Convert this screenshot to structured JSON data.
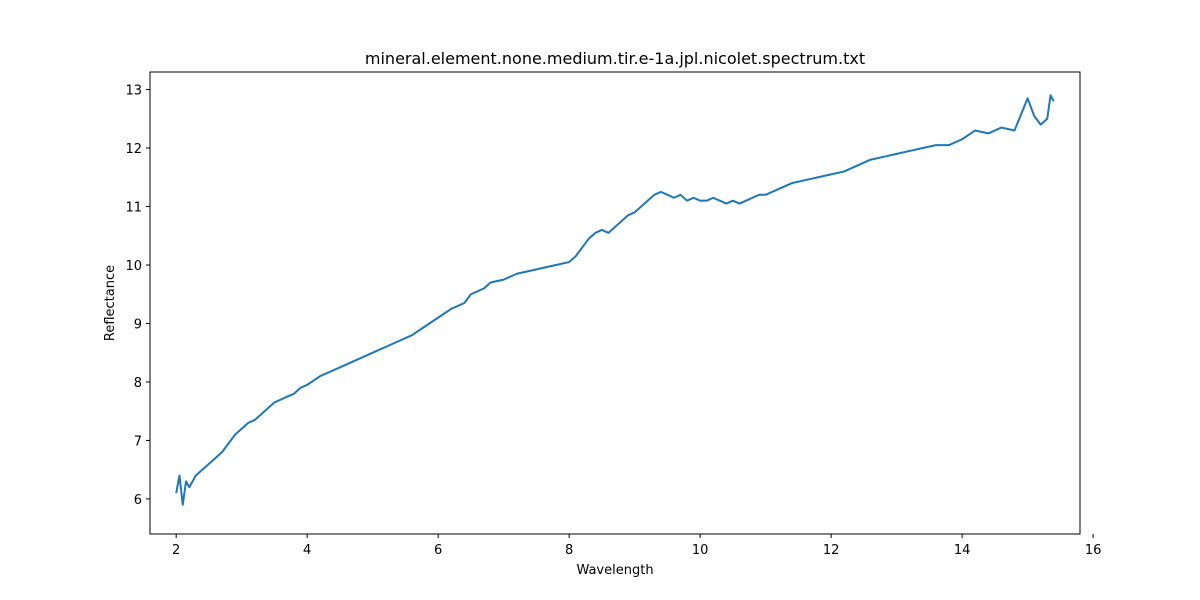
{
  "chart_data": {
    "type": "line",
    "title": "mineral.element.none.medium.tir.e-1a.jpl.nicolet.spectrum.txt",
    "xlabel": "Wavelength",
    "ylabel": "Reflectance",
    "xlim": [
      1.6,
      15.8
    ],
    "ylim": [
      5.4,
      13.3
    ],
    "xticks": [
      2,
      4,
      6,
      8,
      10,
      12,
      14,
      16
    ],
    "yticks": [
      6,
      7,
      8,
      9,
      10,
      11,
      12,
      13
    ],
    "grid": false,
    "series": [
      {
        "color": "#1f77b4",
        "x": [
          2.0,
          2.05,
          2.1,
          2.15,
          2.2,
          2.3,
          2.4,
          2.5,
          2.6,
          2.7,
          2.8,
          2.9,
          3.0,
          3.1,
          3.2,
          3.3,
          3.4,
          3.5,
          3.6,
          3.7,
          3.8,
          3.9,
          4.0,
          4.2,
          4.4,
          4.6,
          4.8,
          5.0,
          5.2,
          5.4,
          5.6,
          5.8,
          6.0,
          6.2,
          6.4,
          6.5,
          6.6,
          6.7,
          6.8,
          7.0,
          7.2,
          7.4,
          7.6,
          7.8,
          8.0,
          8.1,
          8.2,
          8.3,
          8.4,
          8.5,
          8.6,
          8.7,
          8.8,
          8.9,
          9.0,
          9.1,
          9.2,
          9.3,
          9.4,
          9.5,
          9.6,
          9.7,
          9.8,
          9.9,
          10.0,
          10.1,
          10.2,
          10.3,
          10.4,
          10.5,
          10.6,
          10.7,
          10.8,
          10.9,
          11.0,
          11.2,
          11.4,
          11.6,
          11.8,
          12.0,
          12.2,
          12.4,
          12.6,
          12.8,
          13.0,
          13.2,
          13.4,
          13.6,
          13.8,
          14.0,
          14.2,
          14.4,
          14.6,
          14.8,
          15.0,
          15.1,
          15.2,
          15.3,
          15.35,
          15.4
        ],
        "y": [
          6.1,
          6.4,
          5.9,
          6.3,
          6.2,
          6.4,
          6.5,
          6.6,
          6.7,
          6.8,
          6.95,
          7.1,
          7.2,
          7.3,
          7.35,
          7.45,
          7.55,
          7.65,
          7.7,
          7.75,
          7.8,
          7.9,
          7.95,
          8.1,
          8.2,
          8.3,
          8.4,
          8.5,
          8.6,
          8.7,
          8.8,
          8.95,
          9.1,
          9.25,
          9.35,
          9.5,
          9.55,
          9.6,
          9.7,
          9.75,
          9.85,
          9.9,
          9.95,
          10.0,
          10.05,
          10.15,
          10.3,
          10.45,
          10.55,
          10.6,
          10.55,
          10.65,
          10.75,
          10.85,
          10.9,
          11.0,
          11.1,
          11.2,
          11.25,
          11.2,
          11.15,
          11.2,
          11.1,
          11.15,
          11.1,
          11.1,
          11.15,
          11.1,
          11.05,
          11.1,
          11.05,
          11.1,
          11.15,
          11.2,
          11.2,
          11.3,
          11.4,
          11.45,
          11.5,
          11.55,
          11.6,
          11.7,
          11.8,
          11.85,
          11.9,
          11.95,
          12.0,
          12.05,
          12.05,
          12.15,
          12.3,
          12.25,
          12.35,
          12.3,
          12.85,
          12.55,
          12.4,
          12.5,
          12.9,
          12.8
        ]
      }
    ]
  }
}
